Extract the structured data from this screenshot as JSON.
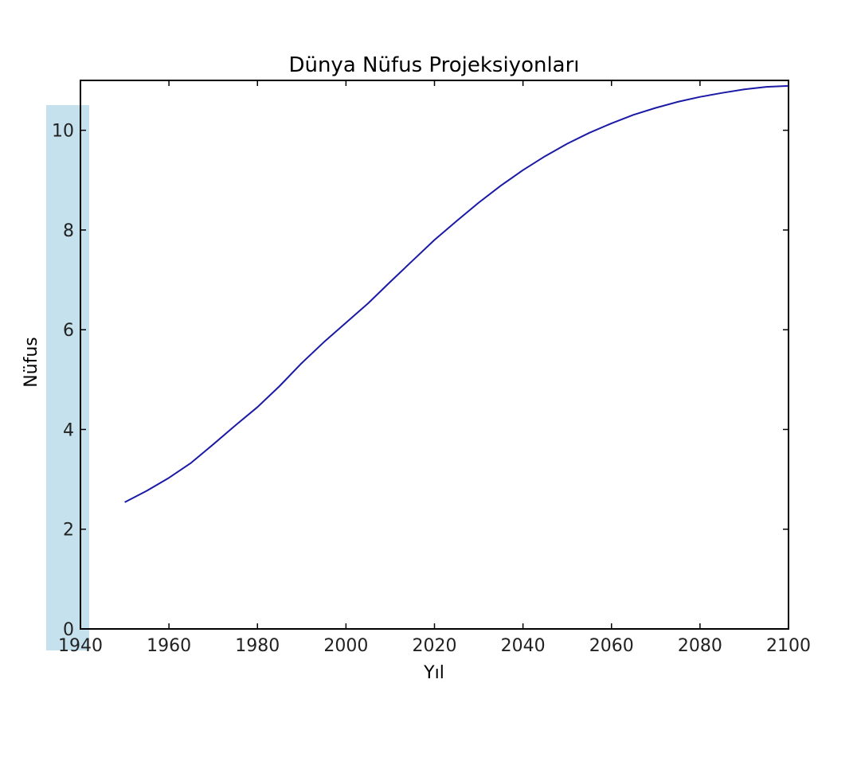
{
  "chart_data": {
    "type": "line",
    "title": "Dünya Nüfus Projeksiyonları",
    "xlabel": "Yıl",
    "ylabel": "Nüfus",
    "xlim": [
      1940,
      2100
    ],
    "ylim": [
      0,
      11
    ],
    "xticks": [
      "1940",
      "1960",
      "1980",
      "2000",
      "2020",
      "2040",
      "2060",
      "2080",
      "2100"
    ],
    "yticks": [
      "0",
      "2",
      "4",
      "6",
      "8",
      "10"
    ],
    "grid": false,
    "legend": "none",
    "series": [
      {
        "color": "#1a1aa6",
        "x": [
          1950,
          1955,
          1960,
          1965,
          1970,
          1975,
          1980,
          1985,
          1990,
          1995,
          2000,
          2005,
          2010,
          2015,
          2020,
          2025,
          2030,
          2035,
          2040,
          2045,
          2050,
          2055,
          2060,
          2065,
          2070,
          2075,
          2080,
          2085,
          2090,
          2095,
          2100
        ],
        "y": [
          2.54,
          2.77,
          3.03,
          3.33,
          3.7,
          4.08,
          4.45,
          4.87,
          5.33,
          5.75,
          6.14,
          6.53,
          6.96,
          7.38,
          7.8,
          8.18,
          8.55,
          8.89,
          9.2,
          9.48,
          9.73,
          9.95,
          10.14,
          10.31,
          10.45,
          10.57,
          10.67,
          10.75,
          10.82,
          10.87,
          10.89
        ]
      }
    ],
    "highlight_color": "#bcdceb"
  }
}
